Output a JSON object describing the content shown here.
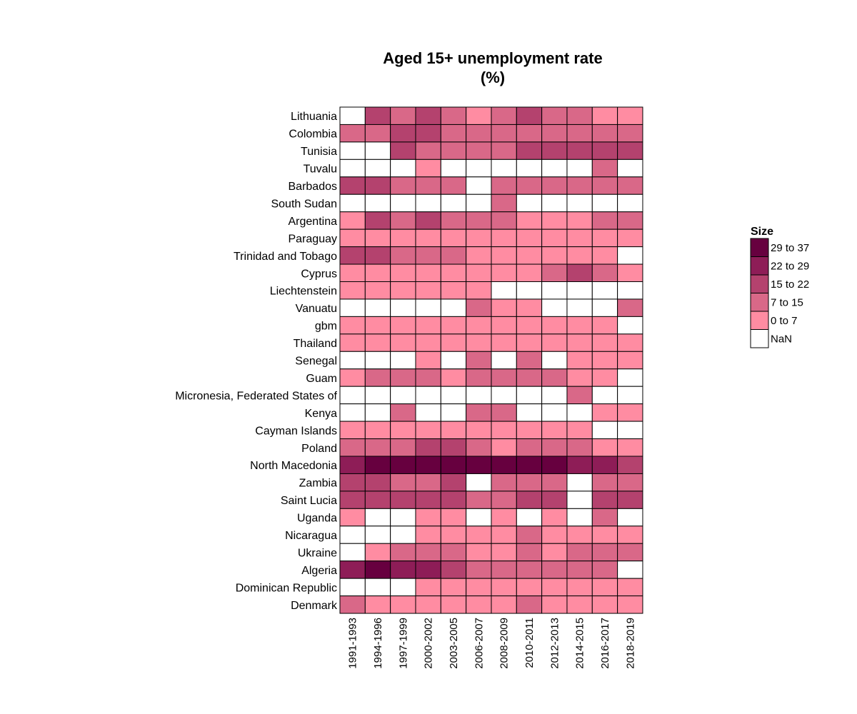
{
  "chart_data": {
    "type": "heatmap",
    "title": [
      "Aged 15+ unemployment rate",
      "(%)"
    ],
    "xlabel": "",
    "ylabel": "",
    "x_categories": [
      "1991-1993",
      "1994-1996",
      "1997-1999",
      "2000-2002",
      "2003-2005",
      "2006-2007",
      "2008-2009",
      "2010-2011",
      "2012-2013",
      "2014-2015",
      "2016-2017",
      "2018-2019"
    ],
    "y_categories": [
      "Lithuania",
      "Colombia",
      "Tunisia",
      "Tuvalu",
      "Barbados",
      "South Sudan",
      "Argentina",
      "Paraguay",
      "Trinidad and Tobago",
      "Cyprus",
      "Liechtenstein",
      "Vanuatu",
      "gbm",
      "Thailand",
      "Senegal",
      "Guam",
      "Micronesia, Federated States of",
      "Kenya",
      "Cayman Islands",
      "Poland",
      "North Macedonia",
      "Zambia",
      "Saint Lucia",
      "Uganda",
      "Nicaragua",
      "Ukraine",
      "Algeria",
      "Dominican Republic",
      "Denmark"
    ],
    "cell_bins": [
      [
        "NaN",
        "15 to 22",
        "7 to 15",
        "15 to 22",
        "7 to 15",
        "0 to 7",
        "7 to 15",
        "15 to 22",
        "7 to 15",
        "7 to 15",
        "0 to 7",
        "0 to 7"
      ],
      [
        "7 to 15",
        "7 to 15",
        "15 to 22",
        "15 to 22",
        "7 to 15",
        "7 to 15",
        "7 to 15",
        "7 to 15",
        "7 to 15",
        "7 to 15",
        "7 to 15",
        "7 to 15"
      ],
      [
        "NaN",
        "NaN",
        "15 to 22",
        "7 to 15",
        "7 to 15",
        "7 to 15",
        "7 to 15",
        "15 to 22",
        "15 to 22",
        "15 to 22",
        "15 to 22",
        "15 to 22"
      ],
      [
        "NaN",
        "NaN",
        "NaN",
        "0 to 7",
        "NaN",
        "NaN",
        "NaN",
        "NaN",
        "NaN",
        "NaN",
        "7 to 15",
        "NaN"
      ],
      [
        "15 to 22",
        "15 to 22",
        "7 to 15",
        "7 to 15",
        "7 to 15",
        "NaN",
        "7 to 15",
        "7 to 15",
        "7 to 15",
        "7 to 15",
        "7 to 15",
        "7 to 15"
      ],
      [
        "NaN",
        "NaN",
        "NaN",
        "NaN",
        "NaN",
        "NaN",
        "7 to 15",
        "NaN",
        "NaN",
        "NaN",
        "NaN",
        "NaN"
      ],
      [
        "0 to 7",
        "15 to 22",
        "7 to 15",
        "15 to 22",
        "7 to 15",
        "7 to 15",
        "7 to 15",
        "0 to 7",
        "0 to 7",
        "0 to 7",
        "7 to 15",
        "7 to 15"
      ],
      [
        "0 to 7",
        "0 to 7",
        "0 to 7",
        "0 to 7",
        "0 to 7",
        "0 to 7",
        "0 to 7",
        "0 to 7",
        "0 to 7",
        "0 to 7",
        "0 to 7",
        "0 to 7"
      ],
      [
        "15 to 22",
        "15 to 22",
        "7 to 15",
        "7 to 15",
        "7 to 15",
        "0 to 7",
        "0 to 7",
        "0 to 7",
        "0 to 7",
        "0 to 7",
        "0 to 7",
        "NaN"
      ],
      [
        "0 to 7",
        "0 to 7",
        "0 to 7",
        "0 to 7",
        "0 to 7",
        "0 to 7",
        "0 to 7",
        "0 to 7",
        "7 to 15",
        "15 to 22",
        "7 to 15",
        "0 to 7"
      ],
      [
        "0 to 7",
        "0 to 7",
        "0 to 7",
        "0 to 7",
        "0 to 7",
        "0 to 7",
        "NaN",
        "NaN",
        "NaN",
        "NaN",
        "NaN",
        "NaN"
      ],
      [
        "NaN",
        "NaN",
        "NaN",
        "NaN",
        "NaN",
        "7 to 15",
        "0 to 7",
        "0 to 7",
        "NaN",
        "NaN",
        "NaN",
        "7 to 15"
      ],
      [
        "0 to 7",
        "0 to 7",
        "0 to 7",
        "0 to 7",
        "0 to 7",
        "0 to 7",
        "0 to 7",
        "0 to 7",
        "0 to 7",
        "0 to 7",
        "0 to 7",
        "NaN"
      ],
      [
        "0 to 7",
        "0 to 7",
        "0 to 7",
        "0 to 7",
        "0 to 7",
        "0 to 7",
        "0 to 7",
        "0 to 7",
        "0 to 7",
        "0 to 7",
        "0 to 7",
        "0 to 7"
      ],
      [
        "NaN",
        "NaN",
        "NaN",
        "0 to 7",
        "NaN",
        "7 to 15",
        "NaN",
        "7 to 15",
        "NaN",
        "0 to 7",
        "0 to 7",
        "0 to 7"
      ],
      [
        "0 to 7",
        "7 to 15",
        "7 to 15",
        "7 to 15",
        "0 to 7",
        "7 to 15",
        "7 to 15",
        "7 to 15",
        "7 to 15",
        "0 to 7",
        "0 to 7",
        "NaN"
      ],
      [
        "NaN",
        "NaN",
        "NaN",
        "NaN",
        "NaN",
        "NaN",
        "NaN",
        "NaN",
        "NaN",
        "7 to 15",
        "NaN",
        "NaN"
      ],
      [
        "NaN",
        "NaN",
        "7 to 15",
        "NaN",
        "NaN",
        "7 to 15",
        "7 to 15",
        "NaN",
        "NaN",
        "NaN",
        "0 to 7",
        "0 to 7"
      ],
      [
        "0 to 7",
        "0 to 7",
        "0 to 7",
        "0 to 7",
        "0 to 7",
        "0 to 7",
        "0 to 7",
        "0 to 7",
        "0 to 7",
        "0 to 7",
        "NaN",
        "NaN"
      ],
      [
        "7 to 15",
        "7 to 15",
        "7 to 15",
        "15 to 22",
        "15 to 22",
        "7 to 15",
        "0 to 7",
        "7 to 15",
        "7 to 15",
        "7 to 15",
        "0 to 7",
        "0 to 7"
      ],
      [
        "22 to 29",
        "29 to 37",
        "29 to 37",
        "29 to 37",
        "29 to 37",
        "29 to 37",
        "29 to 37",
        "29 to 37",
        "29 to 37",
        "22 to 29",
        "22 to 29",
        "15 to 22"
      ],
      [
        "15 to 22",
        "15 to 22",
        "7 to 15",
        "7 to 15",
        "15 to 22",
        "NaN",
        "7 to 15",
        "7 to 15",
        "7 to 15",
        "NaN",
        "7 to 15",
        "7 to 15"
      ],
      [
        "15 to 22",
        "15 to 22",
        "15 to 22",
        "15 to 22",
        "15 to 22",
        "7 to 15",
        "7 to 15",
        "15 to 22",
        "15 to 22",
        "NaN",
        "15 to 22",
        "15 to 22"
      ],
      [
        "0 to 7",
        "NaN",
        "NaN",
        "0 to 7",
        "0 to 7",
        "NaN",
        "0 to 7",
        "NaN",
        "0 to 7",
        "NaN",
        "7 to 15",
        "NaN"
      ],
      [
        "NaN",
        "NaN",
        "NaN",
        "0 to 7",
        "0 to 7",
        "0 to 7",
        "0 to 7",
        "7 to 15",
        "0 to 7",
        "0 to 7",
        "0 to 7",
        "0 to 7"
      ],
      [
        "NaN",
        "0 to 7",
        "7 to 15",
        "7 to 15",
        "7 to 15",
        "0 to 7",
        "0 to 7",
        "7 to 15",
        "0 to 7",
        "7 to 15",
        "7 to 15",
        "7 to 15"
      ],
      [
        "22 to 29",
        "29 to 37",
        "22 to 29",
        "22 to 29",
        "15 to 22",
        "7 to 15",
        "7 to 15",
        "7 to 15",
        "7 to 15",
        "7 to 15",
        "7 to 15",
        "NaN"
      ],
      [
        "NaN",
        "NaN",
        "NaN",
        "0 to 7",
        "0 to 7",
        "0 to 7",
        "0 to 7",
        "0 to 7",
        "0 to 7",
        "0 to 7",
        "0 to 7",
        "0 to 7"
      ],
      [
        "7 to 15",
        "0 to 7",
        "0 to 7",
        "0 to 7",
        "0 to 7",
        "0 to 7",
        "0 to 7",
        "7 to 15",
        "0 to 7",
        "0 to 7",
        "0 to 7",
        "0 to 7"
      ]
    ],
    "legend": {
      "title": "Size",
      "placement": "right",
      "entries": [
        {
          "label": "29 to 37",
          "color": "#67003f"
        },
        {
          "label": "22 to 29",
          "color": "#8e1d57"
        },
        {
          "label": "15 to 22",
          "color": "#b4426e"
        },
        {
          "label": "7 to 15",
          "color": "#d96888"
        },
        {
          "label": "0 to 7",
          "color": "#ff8ca2"
        },
        {
          "label": "NaN",
          "color": "#ffffff"
        }
      ]
    },
    "grid": false
  }
}
